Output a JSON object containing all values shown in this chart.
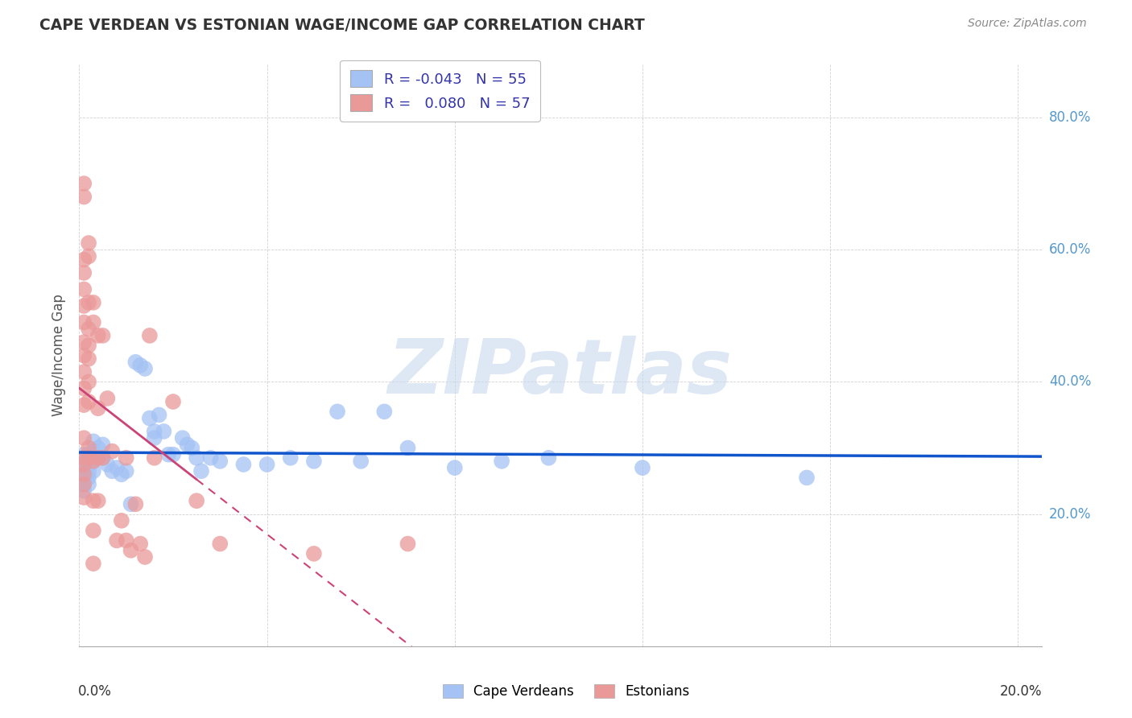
{
  "title": "CAPE VERDEAN VS ESTONIAN WAGE/INCOME GAP CORRELATION CHART",
  "source": "Source: ZipAtlas.com",
  "ylabel": "Wage/Income Gap",
  "xlim": [
    0.0,
    0.205
  ],
  "ylim": [
    0.0,
    0.88
  ],
  "legend_R_blue": "-0.043",
  "legend_N_blue": "55",
  "legend_R_pink": " 0.080",
  "legend_N_pink": "57",
  "blue_color": "#a4c2f4",
  "pink_color": "#ea9999",
  "blue_line_color": "#1155cc",
  "pink_line_color": "#cc4477",
  "watermark": "ZIPatlas",
  "watermark_color": "#c8d8ee",
  "blue_points": [
    [
      0.001,
      0.29
    ],
    [
      0.001,
      0.275
    ],
    [
      0.001,
      0.265
    ],
    [
      0.001,
      0.255
    ],
    [
      0.001,
      0.245
    ],
    [
      0.001,
      0.235
    ],
    [
      0.002,
      0.29
    ],
    [
      0.002,
      0.275
    ],
    [
      0.002,
      0.265
    ],
    [
      0.002,
      0.255
    ],
    [
      0.002,
      0.245
    ],
    [
      0.003,
      0.31
    ],
    [
      0.003,
      0.295
    ],
    [
      0.003,
      0.28
    ],
    [
      0.003,
      0.265
    ],
    [
      0.004,
      0.3
    ],
    [
      0.004,
      0.285
    ],
    [
      0.005,
      0.305
    ],
    [
      0.005,
      0.285
    ],
    [
      0.006,
      0.275
    ],
    [
      0.007,
      0.265
    ],
    [
      0.008,
      0.27
    ],
    [
      0.009,
      0.26
    ],
    [
      0.01,
      0.265
    ],
    [
      0.011,
      0.215
    ],
    [
      0.012,
      0.43
    ],
    [
      0.013,
      0.425
    ],
    [
      0.014,
      0.42
    ],
    [
      0.015,
      0.345
    ],
    [
      0.016,
      0.325
    ],
    [
      0.016,
      0.315
    ],
    [
      0.017,
      0.35
    ],
    [
      0.018,
      0.325
    ],
    [
      0.019,
      0.29
    ],
    [
      0.02,
      0.29
    ],
    [
      0.022,
      0.315
    ],
    [
      0.023,
      0.305
    ],
    [
      0.024,
      0.3
    ],
    [
      0.025,
      0.285
    ],
    [
      0.026,
      0.265
    ],
    [
      0.028,
      0.285
    ],
    [
      0.03,
      0.28
    ],
    [
      0.035,
      0.275
    ],
    [
      0.04,
      0.275
    ],
    [
      0.045,
      0.285
    ],
    [
      0.05,
      0.28
    ],
    [
      0.055,
      0.355
    ],
    [
      0.06,
      0.28
    ],
    [
      0.065,
      0.355
    ],
    [
      0.07,
      0.3
    ],
    [
      0.08,
      0.27
    ],
    [
      0.09,
      0.28
    ],
    [
      0.1,
      0.285
    ],
    [
      0.12,
      0.27
    ],
    [
      0.155,
      0.255
    ]
  ],
  "pink_points": [
    [
      0.001,
      0.7
    ],
    [
      0.001,
      0.68
    ],
    [
      0.001,
      0.585
    ],
    [
      0.001,
      0.565
    ],
    [
      0.001,
      0.54
    ],
    [
      0.001,
      0.515
    ],
    [
      0.001,
      0.49
    ],
    [
      0.001,
      0.46
    ],
    [
      0.001,
      0.44
    ],
    [
      0.001,
      0.415
    ],
    [
      0.001,
      0.39
    ],
    [
      0.001,
      0.365
    ],
    [
      0.001,
      0.315
    ],
    [
      0.001,
      0.285
    ],
    [
      0.001,
      0.275
    ],
    [
      0.001,
      0.26
    ],
    [
      0.001,
      0.245
    ],
    [
      0.001,
      0.225
    ],
    [
      0.002,
      0.61
    ],
    [
      0.002,
      0.59
    ],
    [
      0.002,
      0.52
    ],
    [
      0.002,
      0.48
    ],
    [
      0.002,
      0.455
    ],
    [
      0.002,
      0.435
    ],
    [
      0.002,
      0.4
    ],
    [
      0.002,
      0.37
    ],
    [
      0.002,
      0.3
    ],
    [
      0.002,
      0.285
    ],
    [
      0.003,
      0.52
    ],
    [
      0.003,
      0.49
    ],
    [
      0.003,
      0.28
    ],
    [
      0.003,
      0.22
    ],
    [
      0.003,
      0.175
    ],
    [
      0.003,
      0.125
    ],
    [
      0.004,
      0.47
    ],
    [
      0.004,
      0.36
    ],
    [
      0.004,
      0.285
    ],
    [
      0.004,
      0.22
    ],
    [
      0.005,
      0.47
    ],
    [
      0.005,
      0.285
    ],
    [
      0.006,
      0.375
    ],
    [
      0.007,
      0.295
    ],
    [
      0.008,
      0.16
    ],
    [
      0.01,
      0.16
    ],
    [
      0.013,
      0.155
    ],
    [
      0.015,
      0.47
    ],
    [
      0.016,
      0.285
    ],
    [
      0.02,
      0.37
    ],
    [
      0.025,
      0.22
    ],
    [
      0.03,
      0.155
    ],
    [
      0.05,
      0.14
    ],
    [
      0.07,
      0.155
    ],
    [
      0.01,
      0.285
    ],
    [
      0.012,
      0.215
    ],
    [
      0.009,
      0.19
    ],
    [
      0.011,
      0.145
    ],
    [
      0.014,
      0.135
    ]
  ]
}
